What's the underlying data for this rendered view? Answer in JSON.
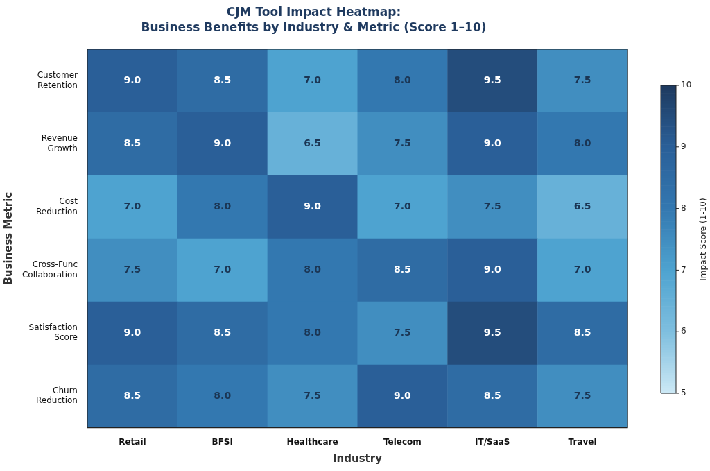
{
  "chart_data": {
    "type": "heatmap",
    "title": "CJM Tool Impact Heatmap:",
    "subtitle": "Business Benefits by Industry & Metric (Score 1–10)",
    "xlabel": "Industry",
    "ylabel": "Business Metric",
    "clabel": "Impact Score (1-10)",
    "categories": [
      "Retail",
      "BFSI",
      "Healthcare",
      "Telecom",
      "IT/SaaS",
      "Travel"
    ],
    "y_categories": [
      "Customer Retention",
      "Revenue Growth",
      "Cost Reduction",
      "Cross-Func Collaboration",
      "Satisfaction Score",
      "Churn Reduction"
    ],
    "cells": [
      [
        9.0,
        8.5,
        7.0,
        8.0,
        9.5,
        7.5
      ],
      [
        8.5,
        9.0,
        6.5,
        7.5,
        9.0,
        8.0
      ],
      [
        7.0,
        8.0,
        9.0,
        7.0,
        7.5,
        6.5
      ],
      [
        7.5,
        7.0,
        8.0,
        8.5,
        9.0,
        7.0
      ],
      [
        9.0,
        8.5,
        8.0,
        7.5,
        9.5,
        8.5
      ],
      [
        8.5,
        8.0,
        7.5,
        9.0,
        8.5,
        7.5
      ]
    ],
    "cell_labels": [
      [
        "9.0",
        "8.5",
        "7.0",
        "8.0",
        "9.5",
        "7.5"
      ],
      [
        "8.5",
        "9.0",
        "6.5",
        "7.5",
        "9.0",
        "8.0"
      ],
      [
        "7.0",
        "8.0",
        "9.0",
        "7.0",
        "7.5",
        "6.5"
      ],
      [
        "7.5",
        "7.0",
        "8.0",
        "8.5",
        "9.0",
        "7.0"
      ],
      [
        "9.0",
        "8.5",
        "8.0",
        "7.5",
        "9.5",
        "8.5"
      ],
      [
        "8.5",
        "8.0",
        "7.5",
        "9.0",
        "8.5",
        "7.5"
      ]
    ],
    "clim": [
      5,
      10
    ],
    "cticks": [
      5,
      6,
      7,
      8,
      9,
      10
    ]
  }
}
